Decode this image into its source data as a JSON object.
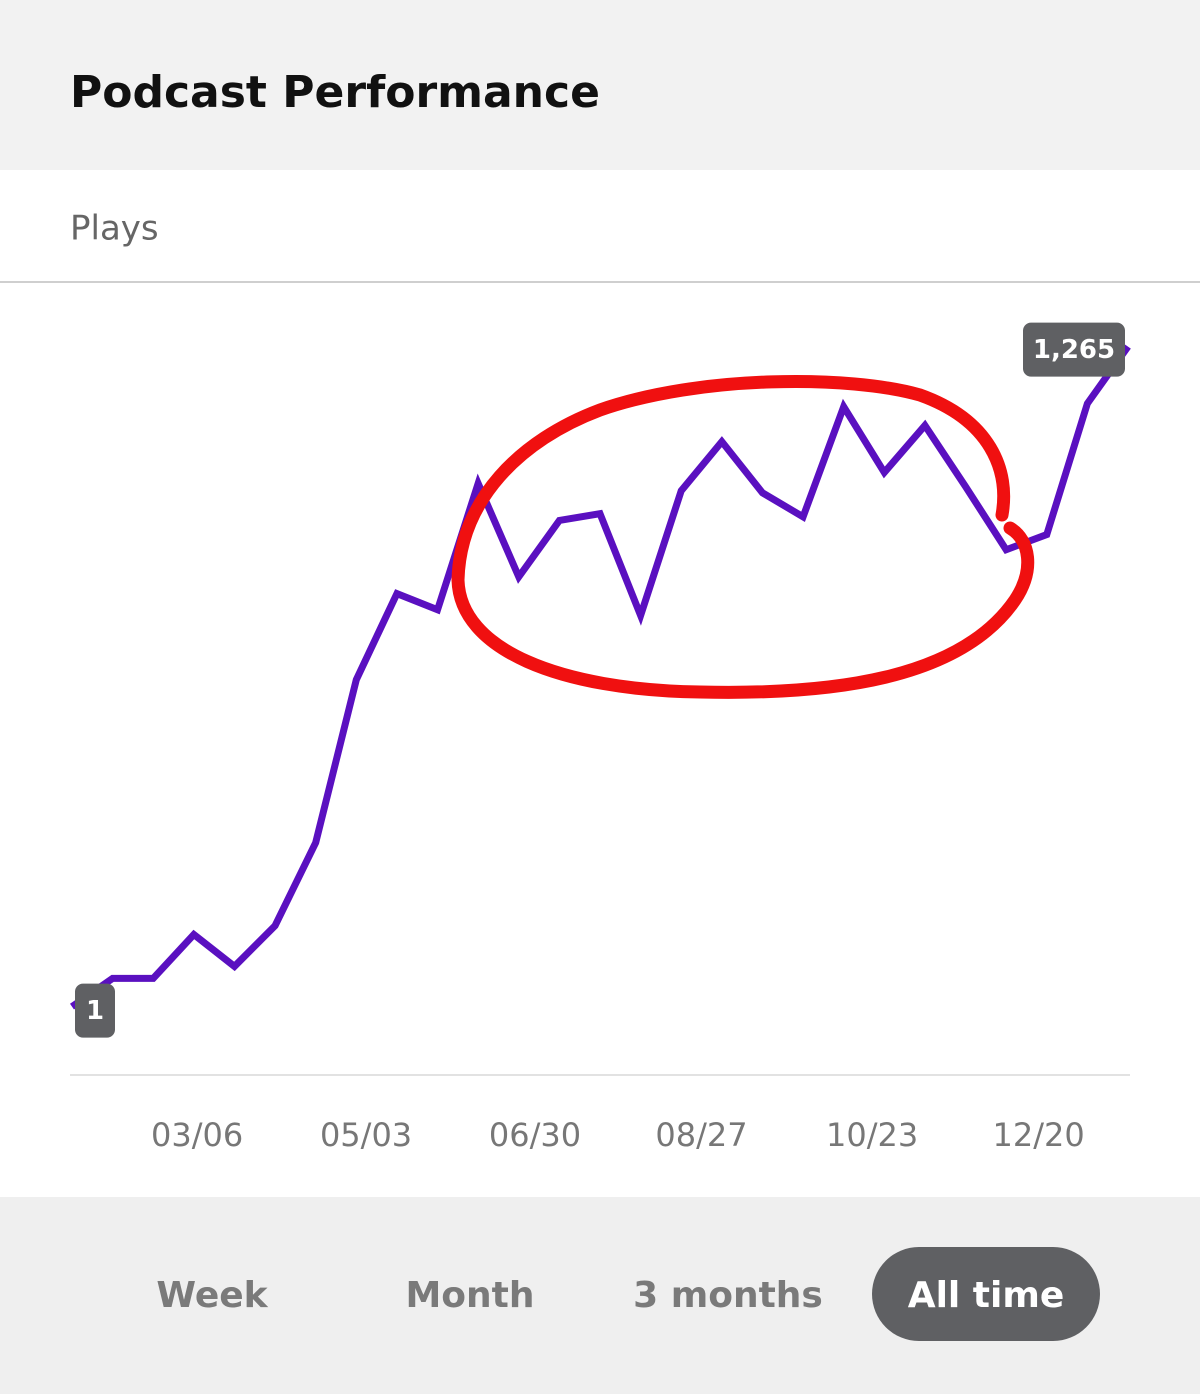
{
  "header": {
    "title": "Podcast Performance"
  },
  "chart_data": {
    "type": "line",
    "subtitle": "Plays",
    "x": [
      0,
      1,
      2,
      3,
      4,
      5,
      6,
      7,
      8,
      9,
      10,
      11,
      12,
      13,
      14,
      15,
      16,
      17,
      18,
      19,
      20,
      21,
      22,
      23,
      24,
      25,
      26
    ],
    "series": [
      {
        "name": "Plays",
        "color": "#5a10c0",
        "values": [
          1,
          55,
          55,
          139,
          78,
          156,
          315,
          627,
          792,
          761,
          1003,
          824,
          932,
          945,
          750,
          989,
          1083,
          985,
          939,
          1150,
          1024,
          1114,
          997,
          876,
          905,
          1156,
          1265
        ],
        "value_labels": [
          "1",
          null,
          null,
          null,
          null,
          null,
          null,
          null,
          null,
          null,
          null,
          null,
          null,
          null,
          null,
          null,
          null,
          null,
          null,
          null,
          null,
          null,
          null,
          null,
          null,
          null,
          "1,265"
        ]
      }
    ],
    "xlim": [
      0,
      26
    ],
    "xticks": [
      {
        "value": 3.08,
        "label": "03/06"
      },
      {
        "value": 7.24,
        "label": "05/03"
      },
      {
        "value": 11.4,
        "label": "06/30"
      },
      {
        "value": 15.5,
        "label": "08/27"
      },
      {
        "value": 19.7,
        "label": "10/23"
      },
      {
        "value": 23.8,
        "label": "12/20"
      }
    ],
    "ylim": [
      -130,
      1360
    ]
  },
  "tabs": {
    "items": [
      "Week",
      "Month",
      "3 months",
      "All time"
    ],
    "selected_index": 3
  }
}
